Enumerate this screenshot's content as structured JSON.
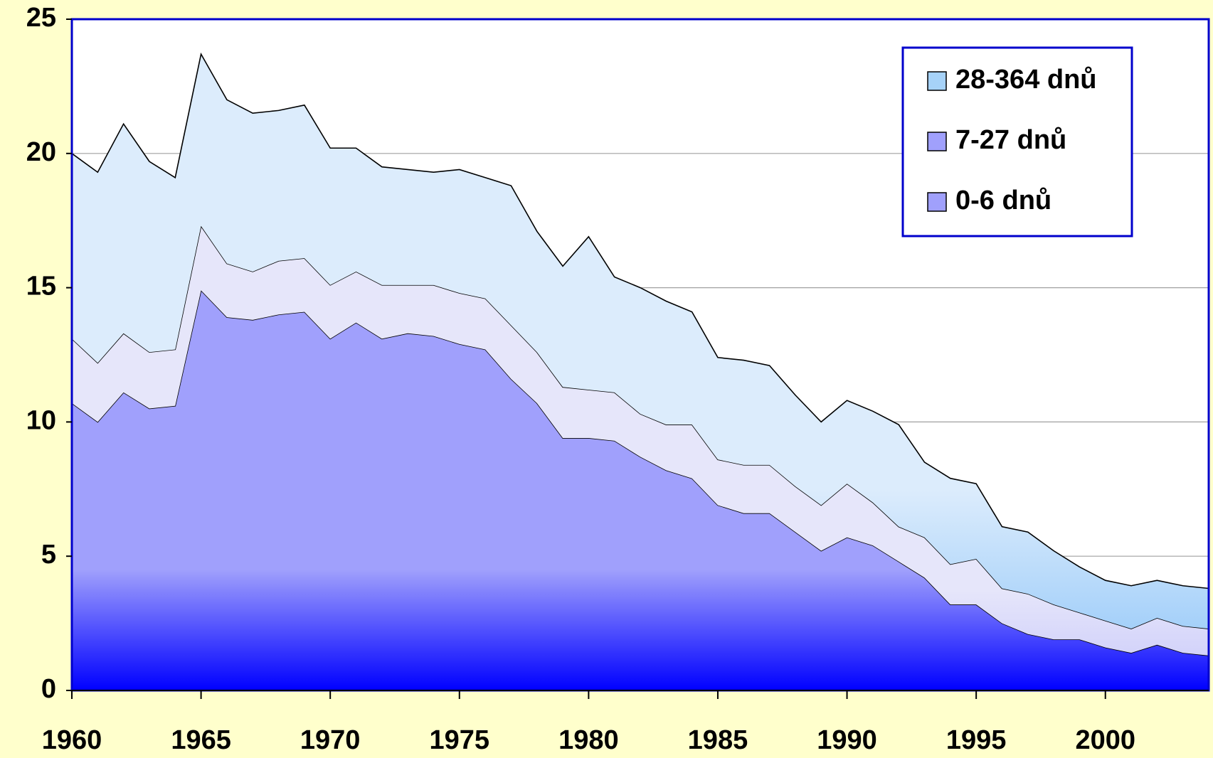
{
  "chart_data": {
    "type": "stacked-area",
    "x": [
      1960,
      1961,
      1962,
      1963,
      1964,
      1965,
      1966,
      1967,
      1968,
      1969,
      1970,
      1971,
      1972,
      1973,
      1974,
      1975,
      1976,
      1977,
      1978,
      1979,
      1980,
      1981,
      1982,
      1983,
      1984,
      1985,
      1986,
      1987,
      1988,
      1989,
      1990,
      1991,
      1992,
      1993,
      1994,
      1995,
      1996,
      1997,
      1998,
      1999,
      2000,
      2001,
      2002,
      2003,
      2004
    ],
    "series": [
      {
        "name": "0-6 dnů",
        "color": "#a0a0fc",
        "values": [
          10.7,
          10.0,
          11.1,
          10.5,
          10.6,
          14.9,
          13.9,
          13.8,
          14.0,
          14.1,
          13.1,
          13.7,
          13.1,
          13.3,
          13.2,
          12.9,
          12.7,
          11.6,
          10.7,
          9.4,
          9.4,
          9.3,
          8.7,
          8.2,
          7.9,
          6.9,
          6.6,
          6.6,
          5.9,
          5.2,
          5.7,
          5.4,
          4.8,
          4.2,
          3.2,
          3.2,
          2.5,
          2.1,
          1.9,
          1.9,
          1.6,
          1.4,
          1.7,
          1.4,
          1.3
        ]
      },
      {
        "name": "7-27 dnů",
        "color": "#e6e6fa",
        "values": [
          2.4,
          2.2,
          2.2,
          2.1,
          2.1,
          2.4,
          2.0,
          1.8,
          2.0,
          2.0,
          2.0,
          1.9,
          2.0,
          1.8,
          1.9,
          1.9,
          1.9,
          2.0,
          1.9,
          1.9,
          1.8,
          1.8,
          1.6,
          1.7,
          2.0,
          1.7,
          1.8,
          1.8,
          1.7,
          1.7,
          2.0,
          1.6,
          1.3,
          1.5,
          1.5,
          1.7,
          1.3,
          1.5,
          1.3,
          1.0,
          1.0,
          0.9,
          1.0,
          1.0,
          1.0
        ]
      },
      {
        "name": "28-364 dnů",
        "color": "#dcecfc",
        "values": [
          6.9,
          7.1,
          7.8,
          7.1,
          6.4,
          6.4,
          6.1,
          5.9,
          5.6,
          5.7,
          5.1,
          4.6,
          4.4,
          4.3,
          4.2,
          4.6,
          4.5,
          5.2,
          4.5,
          4.5,
          5.7,
          4.3,
          4.7,
          4.6,
          4.2,
          3.8,
          3.9,
          3.7,
          3.4,
          3.1,
          3.1,
          3.4,
          3.8,
          2.8,
          3.2,
          2.8,
          2.3,
          2.3,
          2.0,
          1.7,
          1.5,
          1.6,
          1.4,
          1.5,
          1.5
        ]
      }
    ],
    "legend_colors": [
      "#a0a0fc",
      "#a0a0fc",
      "#a6d2f8"
    ],
    "xlim": [
      1960,
      2004
    ],
    "xticks": [
      1960,
      1965,
      1970,
      1975,
      1980,
      1985,
      1990,
      1995,
      2000
    ],
    "ylim": [
      0,
      25
    ],
    "yticks": [
      0,
      5,
      10,
      15,
      20,
      25
    ],
    "grid": true,
    "legend": "top-right"
  }
}
